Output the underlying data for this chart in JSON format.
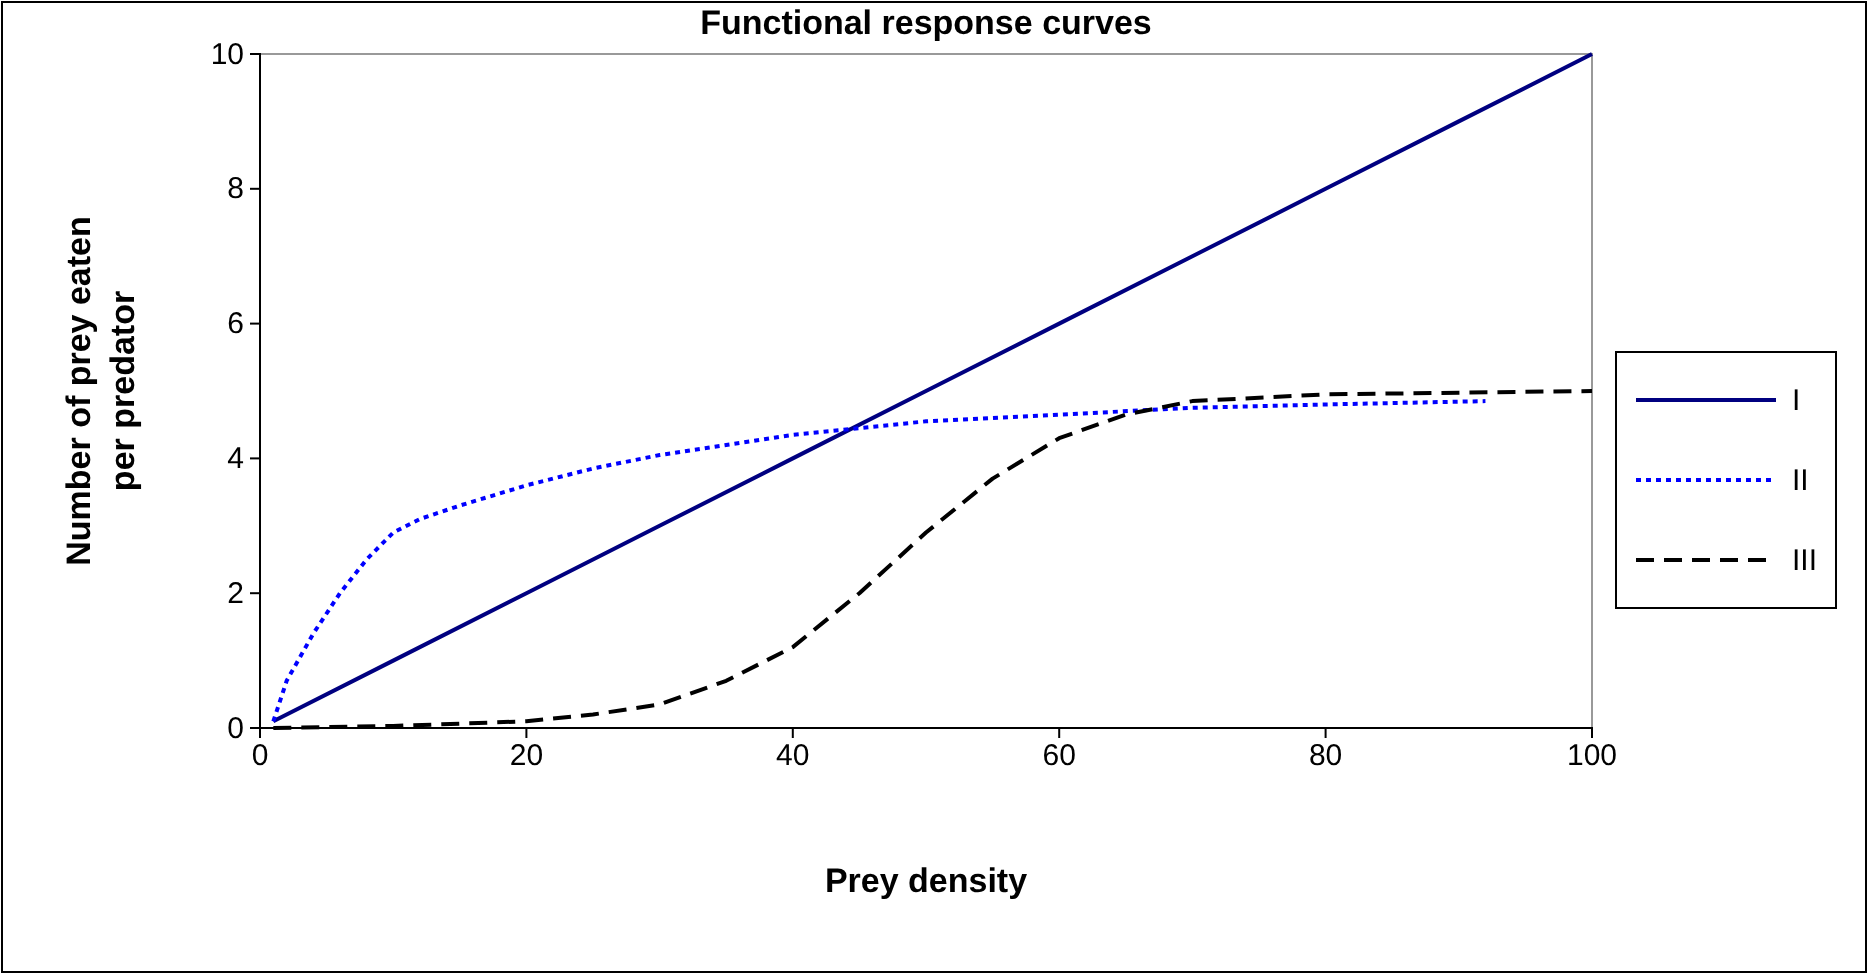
{
  "chart_data": {
    "type": "line",
    "title": "Functional response curves",
    "xlabel": "Prey density",
    "ylabel": "Number of prey eaten per predator",
    "xlim": [
      0,
      100
    ],
    "xticks": [
      0,
      20,
      40,
      60,
      80,
      100
    ],
    "ylim": [
      0,
      10
    ],
    "yticks": [
      0,
      2,
      4,
      6,
      8,
      10
    ],
    "legend": "right",
    "marker": "none",
    "grid": false,
    "series": [
      {
        "name": "I",
        "color": "#000080",
        "line_style": "solid",
        "x": [
          1,
          10,
          20,
          30,
          40,
          50,
          60,
          70,
          80,
          90,
          100
        ],
        "values": [
          0.1,
          1,
          2,
          3,
          4,
          5,
          6,
          7,
          8,
          9,
          10
        ]
      },
      {
        "name": "II",
        "color": "#0000ff",
        "line_style": "dotted",
        "x": [
          1,
          2,
          4,
          6,
          8,
          10,
          12,
          15,
          20,
          25,
          30,
          35,
          40,
          45,
          50,
          60,
          70,
          80,
          92
        ],
        "values": [
          0.1,
          0.7,
          1.4,
          2,
          2.5,
          2.9,
          3.1,
          3.3,
          3.6,
          3.85,
          4.05,
          4.2,
          4.35,
          4.45,
          4.55,
          4.65,
          4.75,
          4.8,
          4.85
        ]
      },
      {
        "name": "III",
        "color": "#000000",
        "line_style": "dashed",
        "x": [
          1,
          10,
          20,
          25,
          30,
          35,
          40,
          45,
          50,
          55,
          60,
          65,
          70,
          80,
          100
        ],
        "values": [
          0,
          0.03,
          0.1,
          0.2,
          0.35,
          0.7,
          1.2,
          2,
          2.9,
          3.7,
          4.3,
          4.65,
          4.85,
          4.95,
          5
        ]
      }
    ]
  }
}
